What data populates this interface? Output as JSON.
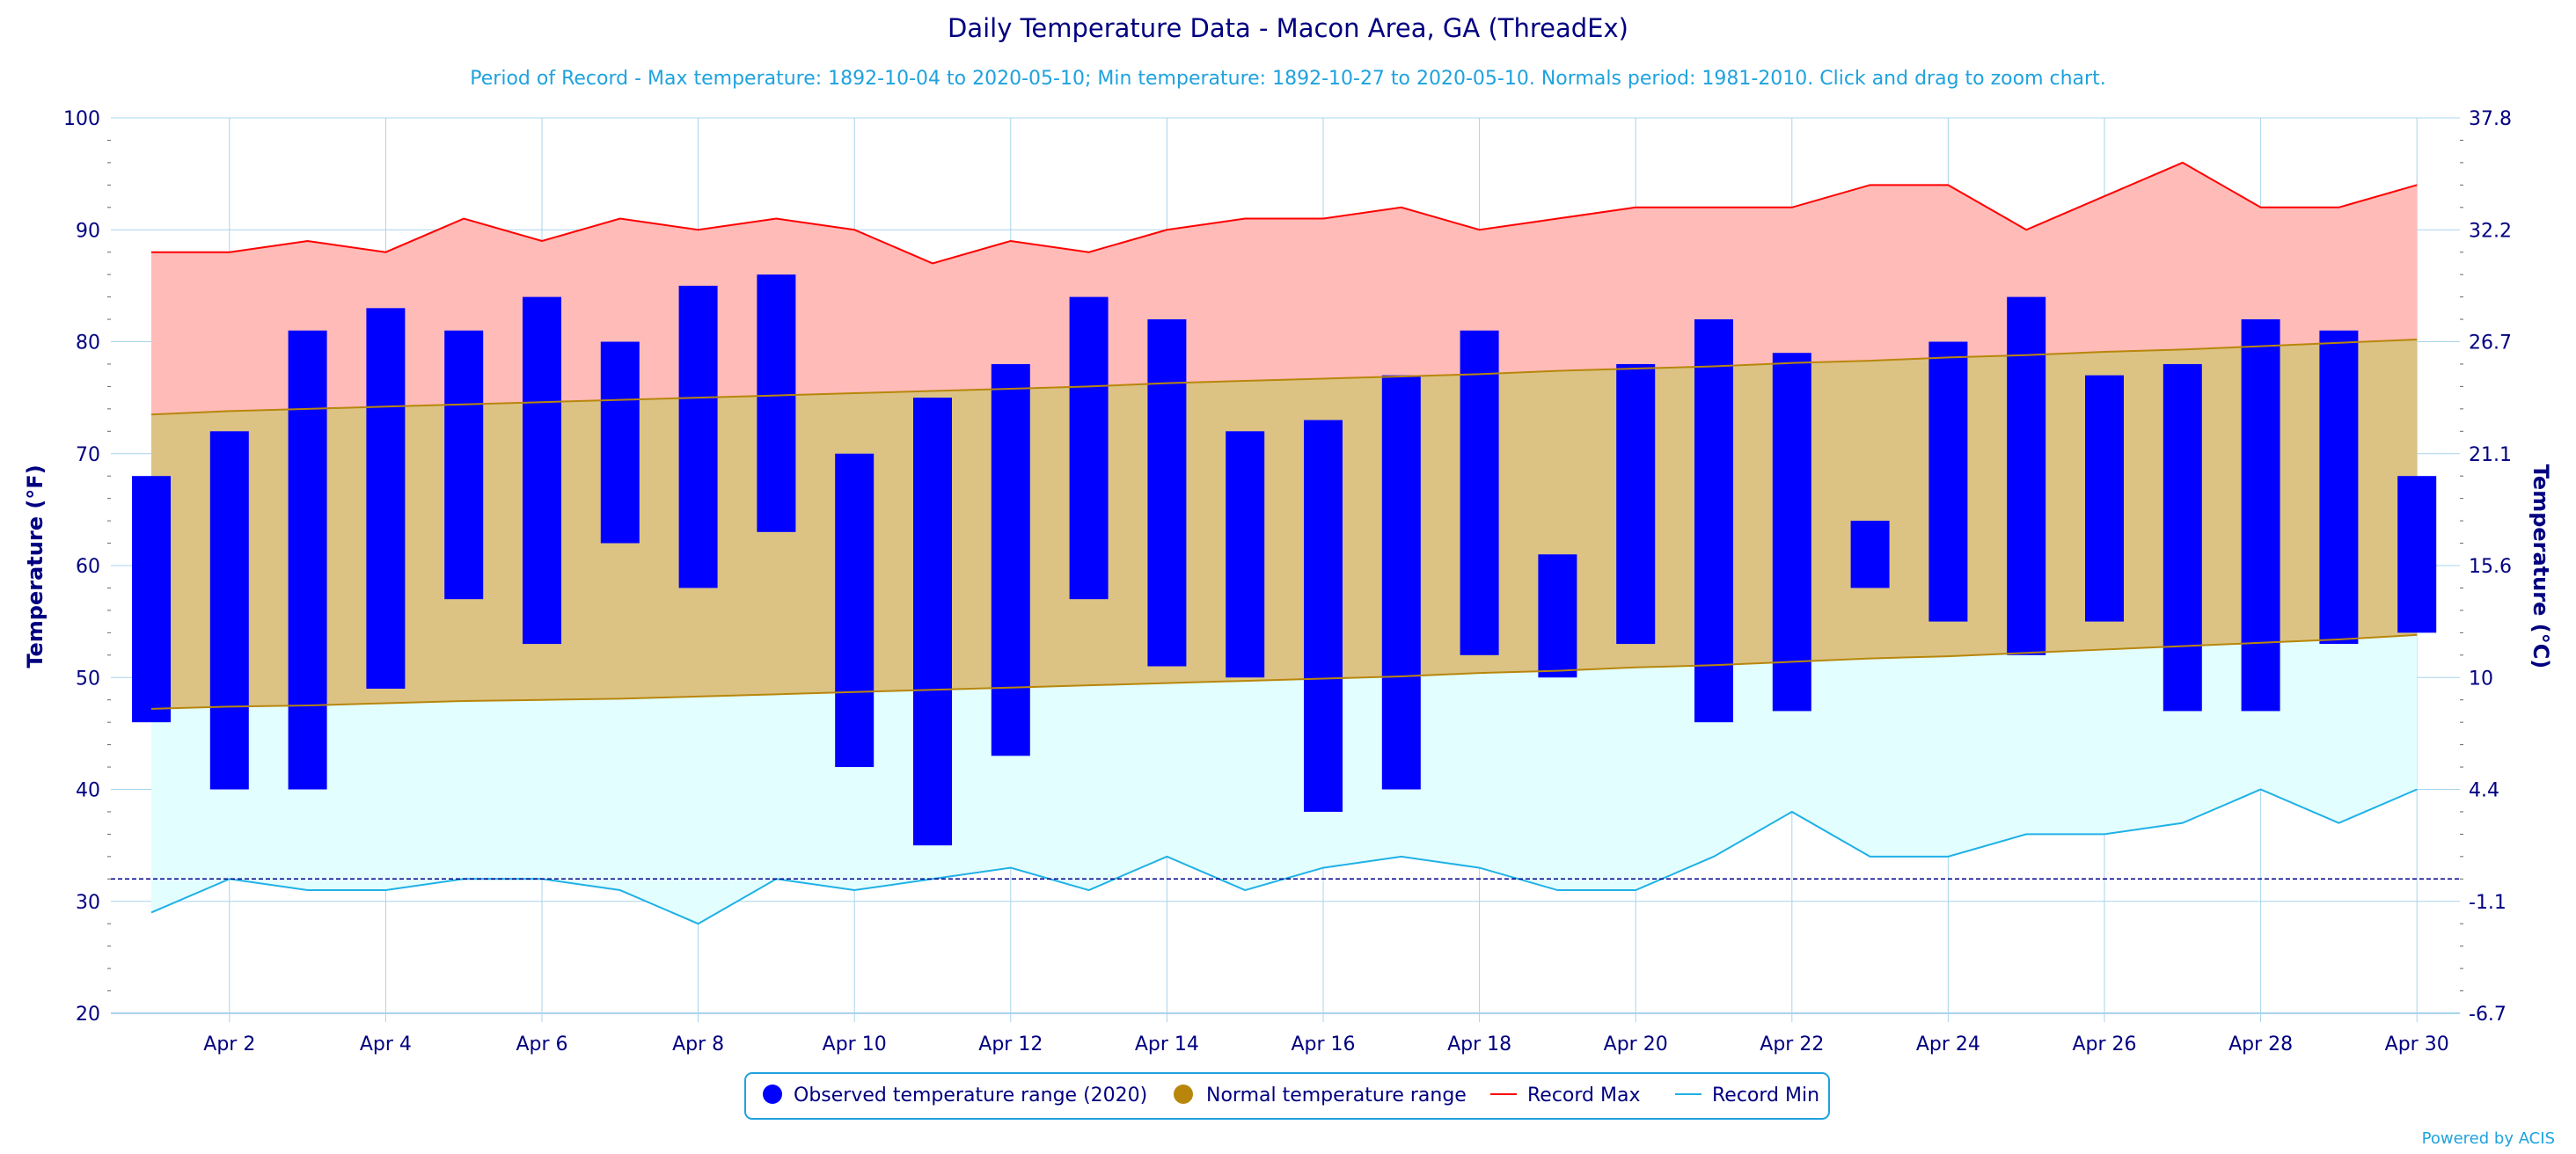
{
  "chart_data": {
    "type": "bar",
    "title": "Daily Temperature Data - Macon Area, GA (ThreadEx)",
    "subtitle": "Period of Record - Max temperature: 1892-10-04 to 2020-05-10; Min temperature: 1892-10-27 to 2020-05-10. Normals period: 1981-2010. Click and drag to zoom chart.",
    "ylabel_left": "Temperature (°F)",
    "ylabel_right": "Temperature (°C)",
    "ylim": [
      20,
      100
    ],
    "y_ticks": [
      "20",
      "30",
      "40",
      "50",
      "60",
      "70",
      "80",
      "90",
      "100"
    ],
    "y2_ticks": [
      "-6.7",
      "-1.1",
      "4.4",
      "10",
      "15.6",
      "21.1",
      "26.7",
      "32.2",
      "37.8"
    ],
    "x_ticks": [
      "Apr 2",
      "Apr 4",
      "Apr 6",
      "Apr 8",
      "Apr 10",
      "Apr 12",
      "Apr 14",
      "Apr 16",
      "Apr 18",
      "Apr 20",
      "Apr 22",
      "Apr 24",
      "Apr 26",
      "Apr 28",
      "Apr 30"
    ],
    "x_tick_days": [
      2,
      4,
      6,
      8,
      10,
      12,
      14,
      16,
      18,
      20,
      22,
      24,
      26,
      28,
      30
    ],
    "days": [
      1,
      2,
      3,
      4,
      5,
      6,
      7,
      8,
      9,
      10,
      11,
      12,
      13,
      14,
      15,
      16,
      17,
      18,
      19,
      20,
      21,
      22,
      23,
      24,
      25,
      26,
      27,
      28,
      29,
      30
    ],
    "observed_min": [
      46,
      40,
      40,
      49,
      57,
      53,
      62,
      58,
      63,
      42,
      35,
      43,
      57,
      51,
      50,
      38,
      40,
      52,
      50,
      53,
      46,
      47,
      58,
      55,
      52,
      55,
      47,
      47,
      53,
      54
    ],
    "observed_max": [
      68,
      72,
      81,
      83,
      81,
      84,
      80,
      85,
      86,
      70,
      75,
      78,
      84,
      82,
      72,
      73,
      77,
      81,
      61,
      78,
      82,
      79,
      64,
      80,
      84,
      77,
      78,
      82,
      81,
      68
    ],
    "normal_low": [
      47.2,
      47.4,
      47.5,
      47.7,
      47.9,
      48.0,
      48.1,
      48.3,
      48.5,
      48.7,
      48.9,
      49.1,
      49.3,
      49.5,
      49.7,
      49.9,
      50.1,
      50.4,
      50.6,
      50.9,
      51.1,
      51.4,
      51.7,
      51.9,
      52.2,
      52.5,
      52.8,
      53.1,
      53.4,
      53.8
    ],
    "normal_high": [
      73.5,
      73.8,
      74.0,
      74.2,
      74.4,
      74.6,
      74.8,
      75.0,
      75.2,
      75.4,
      75.6,
      75.8,
      76.0,
      76.3,
      76.5,
      76.7,
      76.9,
      77.1,
      77.4,
      77.6,
      77.8,
      78.1,
      78.3,
      78.6,
      78.8,
      79.1,
      79.3,
      79.6,
      79.9,
      80.2
    ],
    "record_max": [
      88,
      88,
      89,
      88,
      91,
      89,
      91,
      90,
      91,
      90,
      87,
      89,
      88,
      90,
      91,
      91,
      92,
      90,
      91,
      92,
      92,
      92,
      94,
      94,
      90,
      93,
      96,
      92,
      92,
      94
    ],
    "record_min": [
      29,
      32,
      31,
      31,
      32,
      32,
      31,
      28,
      32,
      31,
      32,
      33,
      31,
      34,
      31,
      33,
      34,
      33,
      31,
      31,
      34,
      38,
      34,
      34,
      36,
      36,
      37,
      40,
      37,
      40
    ],
    "reference_line_f": 32,
    "series": [
      {
        "name": "Observed temperature range (2020)",
        "color": "#0000ff"
      },
      {
        "name": "Normal temperature range",
        "color": "#b8860b"
      },
      {
        "name": "Record Max",
        "color": "#ff0000"
      },
      {
        "name": "Record Min",
        "color": "#1fb1e6"
      }
    ],
    "colors": {
      "record_max_fill": "#ffbbb8",
      "normal_fill": "#dcc384",
      "record_min_fill": "#e3fefe",
      "normal_line": "#b8860b",
      "grid": "#a8d4ec",
      "axis_text": "#000080",
      "subtitle": "#1fa2de",
      "reference_line": "#00008b"
    },
    "legend_position": "bottom",
    "grid": true
  },
  "credit": "Powered by ACIS"
}
